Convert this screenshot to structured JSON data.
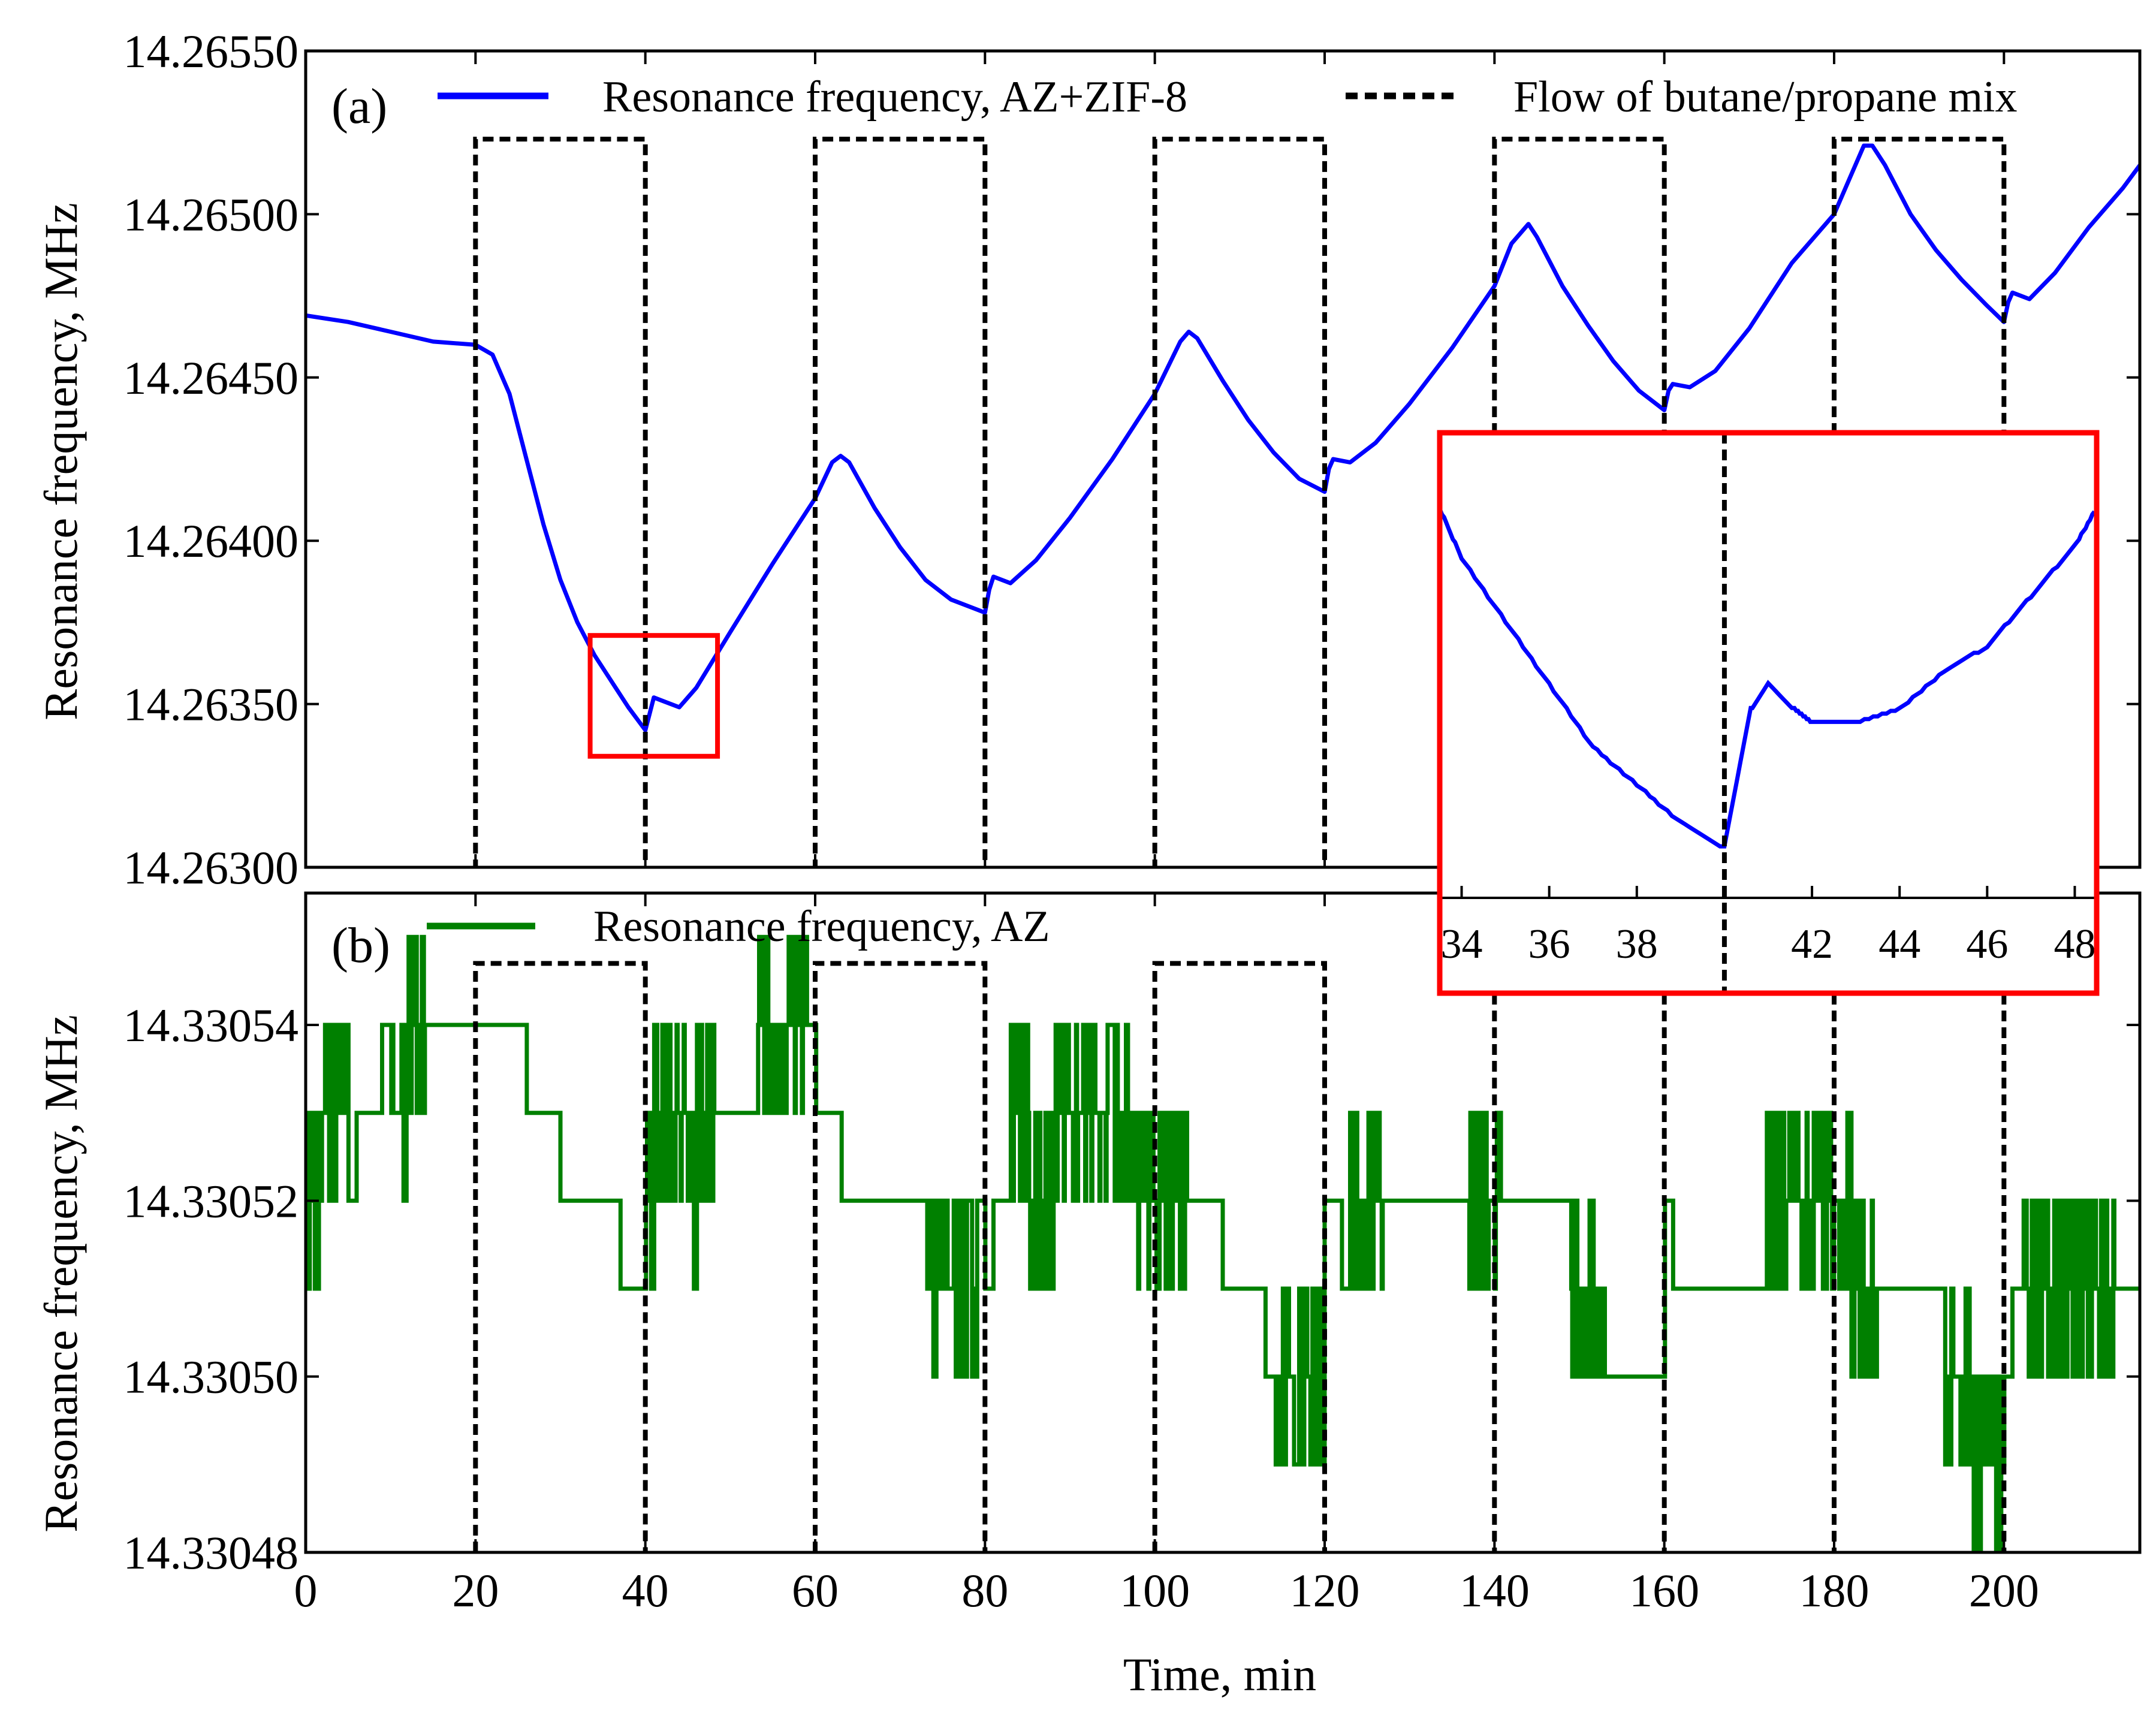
{
  "chart_data": [
    {
      "panel": "a",
      "type": "line",
      "panel_label": "(a)",
      "xlabel": "",
      "ylabel": "Resonance frequency, MHz",
      "xlim": [
        0,
        216
      ],
      "ylim": [
        14.263,
        14.2655
      ],
      "yticks": [
        "14.26300",
        "14.26350",
        "14.26400",
        "14.26450",
        "14.26500",
        "14.26550"
      ],
      "ytick_values": [
        14.263,
        14.2635,
        14.264,
        14.2645,
        14.265,
        14.2655
      ],
      "series": [
        {
          "name": "Resonance frequency, AZ+ZIF-8",
          "color": "#0000ff",
          "style": "solid",
          "points": [
            [
              0,
              14.26469
            ],
            [
              5,
              14.26467
            ],
            [
              10,
              14.26464
            ],
            [
              15,
              14.26461
            ],
            [
              20,
              14.2646
            ],
            [
              22,
              14.26457
            ],
            [
              24,
              14.26445
            ],
            [
              26,
              14.26425
            ],
            [
              28,
              14.26405
            ],
            [
              30,
              14.26388
            ],
            [
              32,
              14.26375
            ],
            [
              34,
              14.26365
            ],
            [
              36,
              14.26357
            ],
            [
              38,
              14.26349
            ],
            [
              40,
              14.26342
            ],
            [
              40.5,
              14.26347
            ],
            [
              41,
              14.26352
            ],
            [
              42,
              14.26351
            ],
            [
              44,
              14.26349
            ],
            [
              46,
              14.26355
            ],
            [
              50,
              14.26372
            ],
            [
              55,
              14.26393
            ],
            [
              60,
              14.26413
            ],
            [
              62,
              14.26424
            ],
            [
              63,
              14.26426
            ],
            [
              64,
              14.26424
            ],
            [
              67,
              14.2641
            ],
            [
              70,
              14.26398
            ],
            [
              73,
              14.26388
            ],
            [
              76,
              14.26382
            ],
            [
              80,
              14.26378
            ],
            [
              80.5,
              14.26385
            ],
            [
              81,
              14.26389
            ],
            [
              83,
              14.26387
            ],
            [
              86,
              14.26394
            ],
            [
              90,
              14.26407
            ],
            [
              95,
              14.26425
            ],
            [
              100,
              14.26445
            ],
            [
              103,
              14.26461
            ],
            [
              104,
              14.26464
            ],
            [
              105,
              14.26462
            ],
            [
              108,
              14.26449
            ],
            [
              111,
              14.26437
            ],
            [
              114,
              14.26427
            ],
            [
              117,
              14.26419
            ],
            [
              120,
              14.26415
            ],
            [
              120.5,
              14.26422
            ],
            [
              121,
              14.26425
            ],
            [
              123,
              14.26424
            ],
            [
              126,
              14.2643
            ],
            [
              130,
              14.26442
            ],
            [
              135,
              14.26459
            ],
            [
              140,
              14.26478
            ],
            [
              142,
              14.26491
            ],
            [
              144,
              14.26497
            ],
            [
              145,
              14.26493
            ],
            [
              148,
              14.26478
            ],
            [
              151,
              14.26466
            ],
            [
              154,
              14.26455
            ],
            [
              157,
              14.26446
            ],
            [
              160,
              14.2644
            ],
            [
              160.5,
              14.26446
            ],
            [
              161,
              14.26448
            ],
            [
              163,
              14.26447
            ],
            [
              166,
              14.26452
            ],
            [
              170,
              14.26465
            ],
            [
              175,
              14.26485
            ],
            [
              180,
              14.265
            ],
            [
              182,
              14.26512
            ],
            [
              183.5,
              14.26521
            ],
            [
              184.5,
              14.26521
            ],
            [
              186,
              14.26515
            ],
            [
              189,
              14.265
            ],
            [
              192,
              14.26489
            ],
            [
              195,
              14.2648
            ],
            [
              198,
              14.26472
            ],
            [
              200,
              14.26467
            ],
            [
              200.5,
              14.26473
            ],
            [
              201,
              14.26476
            ],
            [
              203,
              14.26474
            ],
            [
              206,
              14.26482
            ],
            [
              210,
              14.26496
            ],
            [
              214,
              14.26508
            ],
            [
              216,
              14.26515
            ]
          ]
        },
        {
          "name": "Flow of butane/propane mix",
          "color": "#000000",
          "style": "dashed",
          "on_intervals": [
            [
              20,
              40
            ],
            [
              60,
              80
            ],
            [
              100,
              120
            ],
            [
              140,
              160
            ],
            [
              180,
              200
            ]
          ],
          "on_level": 14.26523,
          "off_level": "below axis"
        }
      ],
      "highlight_box": {
        "x": [
          33.5,
          48.5
        ],
        "y": [
          14.26334,
          14.26371
        ],
        "color": "#ff0000"
      },
      "legend": [
        "Resonance frequency, AZ+ZIF-8",
        "Flow of butane/propane mix"
      ],
      "legend_position": "top"
    },
    {
      "panel": "b",
      "type": "line",
      "panel_label": "(b)",
      "xlabel": "Time, min",
      "ylabel": "Resonance frequency, MHz",
      "xlim": [
        0,
        216
      ],
      "ylim": [
        14.33048,
        14.330555
      ],
      "xticks": [
        "0",
        "20",
        "40",
        "60",
        "80",
        "100",
        "120",
        "140",
        "160",
        "180",
        "200"
      ],
      "xtick_values": [
        0,
        20,
        40,
        60,
        80,
        100,
        120,
        140,
        160,
        180,
        200
      ],
      "yticks": [
        "14.33048",
        "14.33050",
        "14.33052",
        "14.33054"
      ],
      "ytick_values": [
        14.33048,
        14.3305,
        14.33052,
        14.33054
      ],
      "series": [
        {
          "name": "Resonance frequency, AZ",
          "color": "#008000",
          "style": "solid",
          "step_levels": [
            [
              0,
              14.33052
            ],
            [
              2,
              14.33053
            ],
            [
              5,
              14.33052
            ],
            [
              6,
              14.33053
            ],
            [
              9,
              14.33054
            ],
            [
              10,
              14.33053
            ],
            [
              12,
              14.33054
            ],
            [
              26,
              14.33053
            ],
            [
              30,
              14.33052
            ],
            [
              37,
              14.33051
            ],
            [
              40,
              14.33052
            ],
            [
              41,
              14.33053
            ],
            [
              45,
              14.33052
            ],
            [
              46,
              14.33053
            ],
            [
              53,
              14.33054
            ],
            [
              55,
              14.33053
            ],
            [
              56,
              14.33054
            ],
            [
              60,
              14.33053
            ],
            [
              63,
              14.33052
            ],
            [
              73,
              14.33051
            ],
            [
              79,
              14.33052
            ],
            [
              80,
              14.33051
            ],
            [
              81,
              14.33052
            ],
            [
              83,
              14.33053
            ],
            [
              85,
              14.33052
            ],
            [
              88,
              14.33053
            ],
            [
              98,
              14.33052
            ],
            [
              108,
              14.33051
            ],
            [
              113,
              14.3305
            ],
            [
              120,
              14.33052
            ],
            [
              122,
              14.33051
            ],
            [
              123,
              14.33052
            ],
            [
              140,
              14.33052
            ],
            [
              149,
              14.33051
            ],
            [
              153,
              14.3305
            ],
            [
              160,
              14.33052
            ],
            [
              161,
              14.33051
            ],
            [
              172,
              14.33052
            ],
            [
              182,
              14.33051
            ],
            [
              193,
              14.3305
            ],
            [
              196,
              14.33049
            ],
            [
              200,
              14.3305
            ],
            [
              201,
              14.33051
            ],
            [
              216,
              14.33051
            ]
          ],
          "noise_bands": [
            [
              0,
              5
            ],
            [
              10,
              14
            ],
            [
              40,
              48
            ],
            [
              53,
              59
            ],
            [
              73,
              79
            ],
            [
              83,
              104
            ],
            [
              114,
              120
            ],
            [
              123,
              127
            ],
            [
              137,
              141
            ],
            [
              149,
              153
            ],
            [
              172,
              185
            ],
            [
              193,
              200
            ],
            [
              202,
              213
            ]
          ]
        },
        {
          "name": "Flow of butane/propane mix",
          "color": "#000000",
          "style": "dashed",
          "on_intervals": [
            [
              20,
              40
            ],
            [
              60,
              80
            ],
            [
              100,
              120
            ]
          ],
          "on_level": 14.330547,
          "vertical_markers": [
            140,
            160,
            180,
            200
          ]
        }
      ],
      "legend": [
        "Resonance frequency, AZ"
      ],
      "legend_position": "top"
    },
    {
      "panel": "inset",
      "type": "line",
      "xlim": [
        33.5,
        48.5
      ],
      "ylim": [
        14.26334,
        14.26371
      ],
      "xticks": [
        "34",
        "36",
        "38",
        "42",
        "44",
        "46",
        "48"
      ],
      "xtick_values": [
        34,
        36,
        38,
        42,
        44,
        46,
        48
      ],
      "border_color": "#ff0000",
      "vertical_marker": 40,
      "series": [
        {
          "name": "Resonance frequency, AZ+ZIF-8 (zoom)",
          "color": "#0000ff",
          "style": "solid",
          "points": [
            [
              33.5,
              14.26365
            ],
            [
              34,
              14.26361
            ],
            [
              35,
              14.26356
            ],
            [
              36,
              14.26351
            ],
            [
              37,
              14.26346
            ],
            [
              38,
              14.26343
            ],
            [
              39,
              14.2634
            ],
            [
              40,
              14.26338
            ],
            [
              40.6,
              14.26349
            ],
            [
              41,
              14.26351
            ],
            [
              41.6,
              14.26349
            ],
            [
              42,
              14.26348
            ],
            [
              43,
              14.26348
            ],
            [
              44,
              14.26349
            ],
            [
              45,
              14.26352
            ],
            [
              46,
              14.26354
            ],
            [
              47,
              14.26358
            ],
            [
              48,
              14.26362
            ],
            [
              48.5,
              14.26365
            ]
          ]
        }
      ]
    }
  ]
}
